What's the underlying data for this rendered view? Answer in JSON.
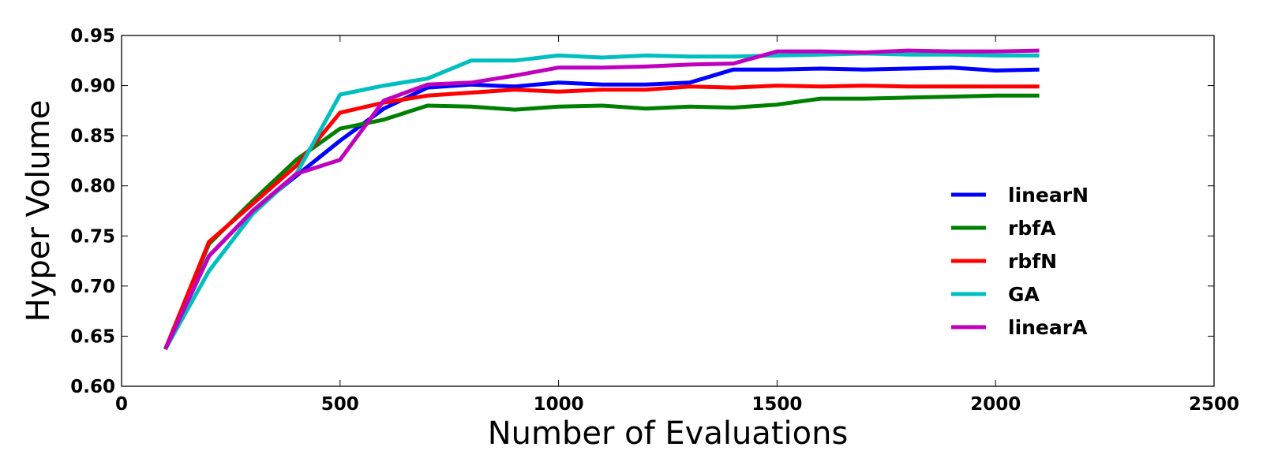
{
  "chart_data": {
    "type": "line",
    "title": "",
    "xlabel": "Number of Evaluations",
    "ylabel": "Hyper Volume",
    "xlim": [
      0,
      2500
    ],
    "ylim": [
      0.6,
      0.95
    ],
    "xticks": [
      0,
      500,
      1000,
      1500,
      2000,
      2500
    ],
    "yticks": [
      0.6,
      0.65,
      0.7,
      0.75,
      0.8,
      0.85,
      0.9,
      0.95
    ],
    "xtick_labels": [
      "0",
      "500",
      "1000",
      "1500",
      "2000",
      "2500"
    ],
    "ytick_labels": [
      "0.60",
      "0.65",
      "0.70",
      "0.75",
      "0.80",
      "0.85",
      "0.90",
      "0.95"
    ],
    "grid": false,
    "legend_position": "center-right",
    "x": [
      100,
      200,
      300,
      400,
      500,
      600,
      700,
      800,
      900,
      1000,
      1100,
      1200,
      1300,
      1400,
      1500,
      1600,
      1700,
      1800,
      1900,
      2000,
      2100
    ],
    "series": [
      {
        "name": "linearN",
        "color": "#0000ff",
        "values": [
          0.637,
          0.73,
          0.775,
          0.81,
          0.845,
          0.877,
          0.898,
          0.901,
          0.899,
          0.903,
          0.901,
          0.901,
          0.903,
          0.916,
          0.916,
          0.917,
          0.916,
          0.917,
          0.918,
          0.915,
          0.916
        ]
      },
      {
        "name": "rbfA",
        "color": "#008000",
        "values": [
          0.637,
          0.742,
          0.785,
          0.826,
          0.857,
          0.866,
          0.88,
          0.879,
          0.876,
          0.879,
          0.88,
          0.877,
          0.879,
          0.878,
          0.881,
          0.887,
          0.887,
          0.888,
          0.889,
          0.89,
          0.89
        ]
      },
      {
        "name": "rbfN",
        "color": "#ff0000",
        "values": [
          0.637,
          0.744,
          0.782,
          0.82,
          0.873,
          0.883,
          0.89,
          0.893,
          0.896,
          0.894,
          0.896,
          0.896,
          0.899,
          0.898,
          0.9,
          0.899,
          0.9,
          0.899,
          0.899,
          0.899,
          0.899
        ]
      },
      {
        "name": "GA",
        "color": "#00bfbf",
        "values": [
          0.637,
          0.715,
          0.772,
          0.812,
          0.891,
          0.9,
          0.907,
          0.925,
          0.925,
          0.93,
          0.928,
          0.93,
          0.929,
          0.929,
          0.93,
          0.931,
          0.932,
          0.931,
          0.931,
          0.93,
          0.93
        ]
      },
      {
        "name": "linearA",
        "color": "#bf00bf",
        "values": [
          0.637,
          0.73,
          0.775,
          0.812,
          0.826,
          0.885,
          0.901,
          0.903,
          0.91,
          0.918,
          0.918,
          0.919,
          0.921,
          0.922,
          0.934,
          0.934,
          0.933,
          0.935,
          0.934,
          0.934,
          0.935
        ]
      }
    ]
  }
}
